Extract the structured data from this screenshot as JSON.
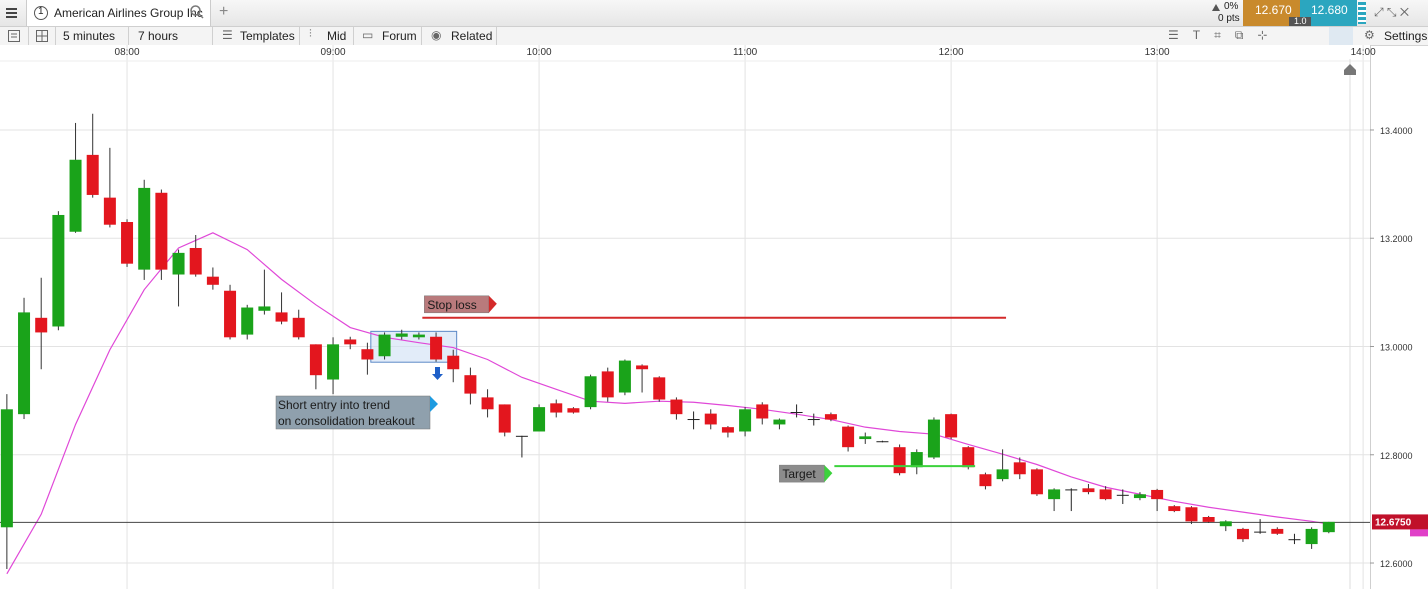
{
  "header": {
    "tab_number": "1",
    "instrument": "American Airlines Group Inc",
    "change_pct": "0%",
    "change_pts": "0 pts",
    "sell": "12.670",
    "spread": "1.0",
    "buy": "12.680"
  },
  "toolbar": {
    "interval": "5 minutes",
    "range": "7 hours",
    "items": [
      "Templates",
      "Mid",
      "Forum",
      "Related"
    ],
    "settings": "Settings"
  },
  "chart_data": {
    "type": "candlestick",
    "x": [
      "07:25",
      "07:30",
      "07:35",
      "07:40",
      "07:45",
      "07:50",
      "07:55",
      "08:00",
      "08:05",
      "08:10",
      "08:15",
      "08:20",
      "08:25",
      "08:30",
      "08:35",
      "08:40",
      "08:45",
      "08:50",
      "08:55",
      "09:00",
      "09:05",
      "09:10",
      "09:15",
      "09:20",
      "09:25",
      "09:30",
      "09:35",
      "09:40",
      "09:45",
      "09:50",
      "09:55",
      "10:00",
      "10:05",
      "10:10",
      "10:15",
      "10:20",
      "10:25",
      "10:30",
      "10:35",
      "10:40",
      "10:45",
      "10:50",
      "10:55",
      "11:00",
      "11:05",
      "11:10",
      "11:15",
      "11:20",
      "11:25",
      "11:30",
      "11:35",
      "11:40",
      "11:45",
      "11:50",
      "11:55",
      "12:00",
      "12:05",
      "12:10",
      "12:15",
      "12:20",
      "12:25",
      "12:30",
      "12:35",
      "12:40",
      "12:45",
      "12:50",
      "12:55",
      "13:00",
      "13:05",
      "13:10",
      "13:15",
      "13:20",
      "13:25",
      "13:30",
      "13:35",
      "13:40",
      "13:45",
      "13:50"
    ],
    "open": [
      12.666,
      12.875,
      13.053,
      13.037,
      13.212,
      13.354,
      13.275,
      13.23,
      13.142,
      13.284,
      13.133,
      13.182,
      13.129,
      13.103,
      13.022,
      13.066,
      13.063,
      13.053,
      13.004,
      12.939,
      13.013,
      12.995,
      12.982,
      13.018,
      13.017,
      13.018,
      12.983,
      12.947,
      12.906,
      12.893,
      12.835,
      12.843,
      12.895,
      12.886,
      12.888,
      12.954,
      12.915,
      12.965,
      12.943,
      12.902,
      12.866,
      12.876,
      12.851,
      12.843,
      12.893,
      12.856,
      12.879,
      12.866,
      12.875,
      12.852,
      12.829,
      12.825,
      12.814,
      12.777,
      12.795,
      12.875,
      12.814,
      12.764,
      12.755,
      12.786,
      12.773,
      12.718,
      12.736,
      12.738,
      12.736,
      12.726,
      12.72,
      12.735,
      12.705,
      12.703,
      12.685,
      12.668,
      12.663,
      12.658,
      12.663,
      12.644,
      12.635,
      12.657
    ],
    "high": [
      12.912,
      13.09,
      13.127,
      13.25,
      13.413,
      13.43,
      13.367,
      13.235,
      13.308,
      13.29,
      13.179,
      13.206,
      13.146,
      13.114,
      13.077,
      13.142,
      13.1,
      13.068,
      13.004,
      13.017,
      13.018,
      13.007,
      13.026,
      13.031,
      13.026,
      13.026,
      12.994,
      12.961,
      12.921,
      12.893,
      12.835,
      12.893,
      12.902,
      12.888,
      12.948,
      12.961,
      12.976,
      12.967,
      12.945,
      12.906,
      12.88,
      12.884,
      12.853,
      12.888,
      12.897,
      12.867,
      12.893,
      12.876,
      12.878,
      12.854,
      12.841,
      12.826,
      12.819,
      12.81,
      12.869,
      12.876,
      12.816,
      12.767,
      12.81,
      12.795,
      12.775,
      12.738,
      12.738,
      12.746,
      12.742,
      12.736,
      12.731,
      12.737,
      12.707,
      12.705,
      12.687,
      12.679,
      12.665,
      12.681,
      12.666,
      12.654,
      12.666,
      12.676
    ],
    "low": [
      12.589,
      12.866,
      12.958,
      13.03,
      13.21,
      13.275,
      13.22,
      13.147,
      13.123,
      13.123,
      13.074,
      13.129,
      13.105,
      13.013,
      13.013,
      13.059,
      13.041,
      13.013,
      12.921,
      12.912,
      12.995,
      12.948,
      12.976,
      13.013,
      13.013,
      12.972,
      12.934,
      12.893,
      12.869,
      12.834,
      12.795,
      12.843,
      12.869,
      12.876,
      12.884,
      12.898,
      12.91,
      12.915,
      12.898,
      12.865,
      12.847,
      12.847,
      12.832,
      12.834,
      12.856,
      12.847,
      12.869,
      12.854,
      12.862,
      12.806,
      12.82,
      12.823,
      12.762,
      12.764,
      12.792,
      12.829,
      12.773,
      12.736,
      12.751,
      12.755,
      12.724,
      12.696,
      12.696,
      12.727,
      12.716,
      12.709,
      12.716,
      12.696,
      12.694,
      12.672,
      12.674,
      12.659,
      12.639,
      12.654,
      12.652,
      12.635,
      12.626,
      12.655
    ],
    "close": [
      12.884,
      13.063,
      13.026,
      13.243,
      13.345,
      13.28,
      13.225,
      13.153,
      13.293,
      13.142,
      13.173,
      13.133,
      13.114,
      13.017,
      13.072,
      13.074,
      13.046,
      13.017,
      12.947,
      13.004,
      13.004,
      12.976,
      13.022,
      13.024,
      13.022,
      12.976,
      12.958,
      12.913,
      12.884,
      12.841,
      12.835,
      12.888,
      12.878,
      12.878,
      12.945,
      12.906,
      12.974,
      12.958,
      12.902,
      12.875,
      12.866,
      12.856,
      12.841,
      12.884,
      12.867,
      12.865,
      12.879,
      12.866,
      12.865,
      12.814,
      12.834,
      12.825,
      12.766,
      12.805,
      12.865,
      12.832,
      12.777,
      12.742,
      12.773,
      12.764,
      12.727,
      12.736,
      12.736,
      12.731,
      12.718,
      12.726,
      12.727,
      12.718,
      12.696,
      12.677,
      12.676,
      12.677,
      12.644,
      12.658,
      12.654,
      12.644,
      12.663,
      12.676
    ],
    "up_color": "#1aa31a",
    "down_color": "#e3161e",
    "doji_color": "#222222",
    "overlay": {
      "color": "#e048d8",
      "x": [
        "07:25",
        "07:35",
        "07:45",
        "07:55",
        "08:05",
        "08:15",
        "08:25",
        "08:35",
        "08:45",
        "08:55",
        "09:05",
        "09:15",
        "09:25",
        "09:35",
        "09:45",
        "09:55",
        "10:05",
        "10:15",
        "10:25",
        "10:35",
        "10:45",
        "10:55",
        "11:05",
        "11:15",
        "11:25",
        "11:35",
        "11:45",
        "11:55",
        "12:05",
        "12:15",
        "12:25",
        "12:35",
        "12:45",
        "12:55",
        "13:05",
        "13:15",
        "13:25",
        "13:35",
        "13:45",
        "13:50"
      ],
      "values": [
        12.58,
        12.69,
        12.856,
        12.994,
        13.105,
        13.182,
        13.21,
        13.179,
        13.124,
        13.077,
        13.035,
        13.017,
        13.007,
        12.998,
        12.976,
        12.943,
        12.921,
        12.899,
        12.895,
        12.899,
        12.897,
        12.891,
        12.884,
        12.875,
        12.865,
        12.851,
        12.843,
        12.838,
        12.819,
        12.801,
        12.782,
        12.759,
        12.74,
        12.727,
        12.714,
        12.703,
        12.694,
        12.685,
        12.677,
        12.672
      ]
    },
    "xlim": [
      "07:23",
      "14:02"
    ],
    "xticks": [
      "08:00",
      "09:00",
      "10:00",
      "11:00",
      "12:00",
      "13:00",
      "14:00"
    ],
    "ylim": [
      12.552,
      13.557
    ],
    "yticks": [
      {
        "value": 12.6,
        "label": "12.6000"
      },
      {
        "value": 12.8,
        "label": "12.8000"
      },
      {
        "value": 13.0,
        "label": "13.0000"
      },
      {
        "value": 13.2,
        "label": "13.2000"
      },
      {
        "value": 13.4,
        "label": "13.4000"
      }
    ],
    "grid": true,
    "last_price": {
      "value": 12.675,
      "label": "12.6750",
      "color": "#c0102a"
    },
    "levels": [
      {
        "text": "Stop loss",
        "value": 13.053,
        "x": [
          "09:26",
          "12:16"
        ],
        "color": "#d42a2a"
      },
      {
        "text": "Target",
        "value": 12.779,
        "x": [
          "11:26",
          "12:07"
        ],
        "color": "#3cd23c"
      }
    ],
    "box": {
      "x": [
        "09:11",
        "09:36"
      ],
      "y": [
        12.971,
        13.028
      ]
    },
    "note": {
      "lines": [
        "Short entry into trend",
        "on consolidation breakout"
      ]
    }
  }
}
